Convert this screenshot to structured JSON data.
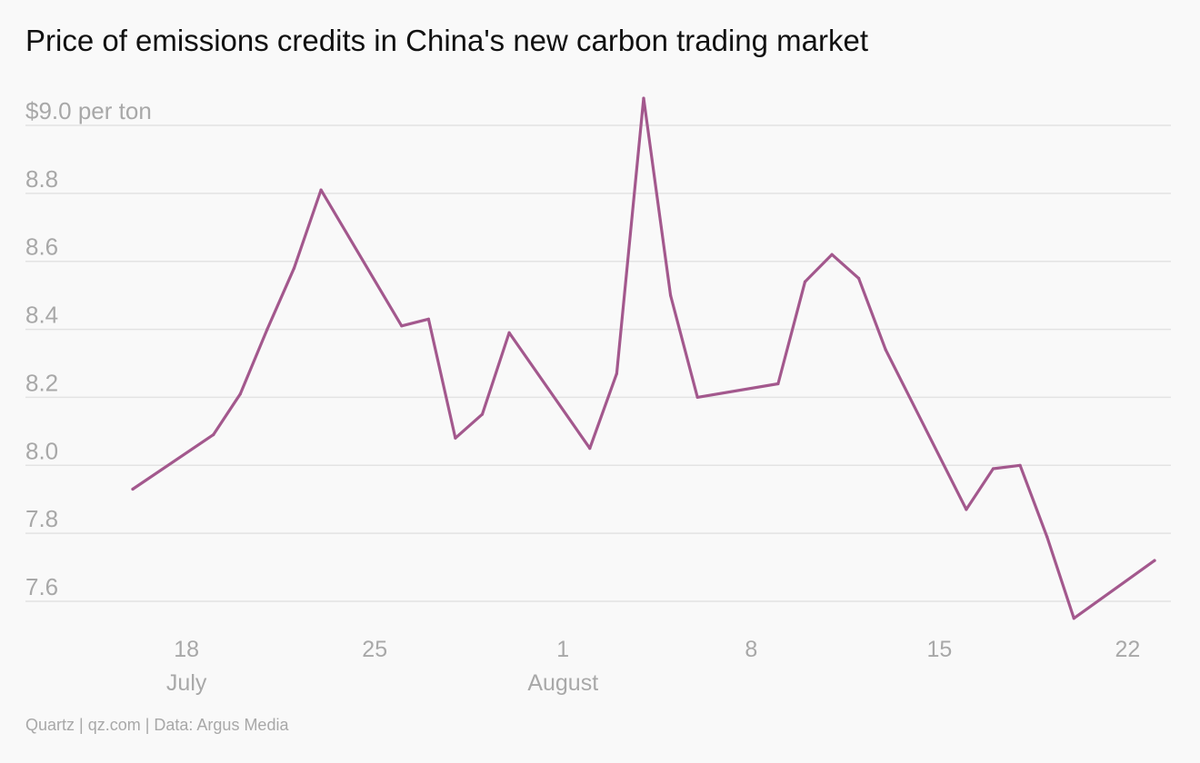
{
  "source": "Quartz | qz.com | Data: Argus Media",
  "chart_data": {
    "type": "line",
    "title": "Price of emissions credits in China's new carbon trading market",
    "xlabel": "",
    "ylabel": "",
    "y_unit_label": "$9.0 per ton",
    "xlim": [
      "2021-07-15",
      "2021-08-23"
    ],
    "ylim": [
      7.5,
      9.1
    ],
    "grid": true,
    "colors": {
      "line": "#a3588d",
      "grid": "#e3e3e3",
      "tick": "#a8a8a8",
      "title": "#111111",
      "background": "#f9f9f9"
    },
    "y_ticks": [
      {
        "value": 9.0,
        "label": "$9.0 per ton"
      },
      {
        "value": 8.8,
        "label": "8.8"
      },
      {
        "value": 8.6,
        "label": "8.6"
      },
      {
        "value": 8.4,
        "label": "8.4"
      },
      {
        "value": 8.2,
        "label": "8.2"
      },
      {
        "value": 8.0,
        "label": "8.0"
      },
      {
        "value": 7.8,
        "label": "7.8"
      },
      {
        "value": 7.6,
        "label": "7.6"
      }
    ],
    "x_ticks": [
      {
        "date": "2021-07-18",
        "label": "18",
        "month": "July"
      },
      {
        "date": "2021-07-25",
        "label": "25",
        "month": ""
      },
      {
        "date": "2021-08-01",
        "label": "1",
        "month": "August"
      },
      {
        "date": "2021-08-08",
        "label": "8",
        "month": ""
      },
      {
        "date": "2021-08-15",
        "label": "15",
        "month": ""
      },
      {
        "date": "2021-08-22",
        "label": "22",
        "month": ""
      }
    ],
    "series": [
      {
        "x": [
          "2021-07-16",
          "2021-07-19",
          "2021-07-20",
          "2021-07-21",
          "2021-07-22",
          "2021-07-23",
          "2021-07-26",
          "2021-07-27",
          "2021-07-28",
          "2021-07-29",
          "2021-07-30",
          "2021-08-02",
          "2021-08-03",
          "2021-08-04",
          "2021-08-05",
          "2021-08-06",
          "2021-08-09",
          "2021-08-10",
          "2021-08-11",
          "2021-08-12",
          "2021-08-13",
          "2021-08-16",
          "2021-08-17",
          "2021-08-18",
          "2021-08-19",
          "2021-08-20",
          "2021-08-23"
        ],
        "values": [
          7.93,
          8.09,
          8.21,
          8.4,
          8.58,
          8.81,
          8.41,
          8.43,
          8.08,
          8.15,
          8.39,
          8.05,
          8.27,
          9.08,
          8.5,
          8.2,
          8.24,
          8.54,
          8.62,
          8.55,
          8.34,
          7.87,
          7.99,
          8.0,
          7.79,
          7.55,
          7.72
        ]
      }
    ]
  }
}
